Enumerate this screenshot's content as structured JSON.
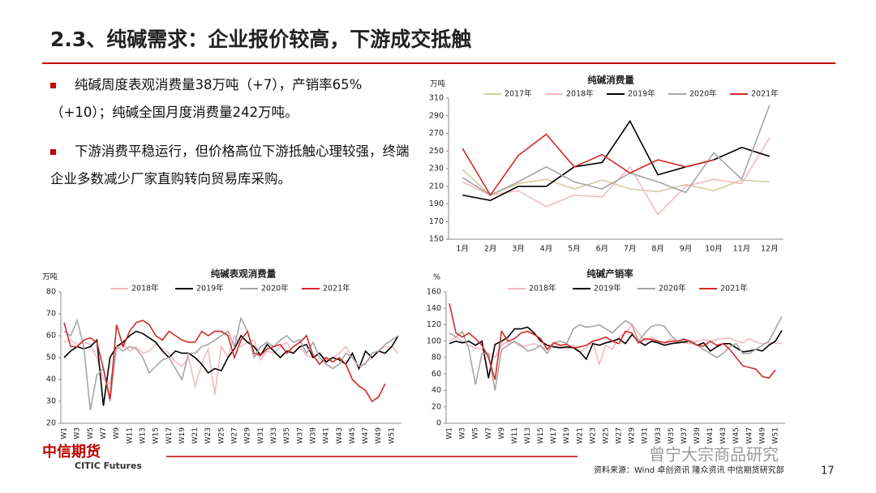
{
  "header": {
    "title": "2.3、纯碱需求：企业报价较高，下游成交抵触"
  },
  "bullets": [
    "纯碱周度表观消费量38万吨（+7），产销率65%（+10）；纯碱全国月度消费量242万吨。",
    "下游消费平稳运行，但价格高位下游抵触心理较强，终端企业多数减少厂家直购转向贸易库采购。"
  ],
  "footer": {
    "logo": "中信期货",
    "logo_en": "CITIC Futures",
    "source": "资料来源：Wind 卓创资讯 隆众资讯 中信期货研究部",
    "page": "17",
    "watermark": "曾宁大宗商品研究"
  },
  "chart_data": [
    {
      "type": "line",
      "title": "纯碱消费量",
      "y_unit": "万吨",
      "categories": [
        "1月",
        "2月",
        "3月",
        "4月",
        "5月",
        "6月",
        "7月",
        "8月",
        "9月",
        "10月",
        "11月",
        "12月"
      ],
      "ylim": [
        150,
        310
      ],
      "yticks": [
        150,
        170,
        190,
        210,
        230,
        250,
        270,
        290,
        310
      ],
      "series": [
        {
          "name": "2017年",
          "color": "#d8cba2",
          "values": [
            229,
            200,
            213,
            218,
            207,
            217,
            207,
            204,
            212,
            205,
            217,
            215
          ]
        },
        {
          "name": "2018年",
          "color": "#f4b9c1",
          "values": [
            215,
            200,
            205,
            187,
            200,
            198,
            232,
            178,
            210,
            218,
            213,
            265
          ]
        },
        {
          "name": "2019年",
          "color": "#000000",
          "values": [
            200,
            194,
            210,
            210,
            232,
            237,
            284,
            223,
            232,
            240,
            254,
            244
          ]
        },
        {
          "name": "2020年",
          "color": "#a6a6a6",
          "values": [
            220,
            200,
            215,
            232,
            215,
            207,
            225,
            215,
            203,
            248,
            218,
            302
          ]
        },
        {
          "name": "2021年",
          "color": "#d42a2a",
          "values": [
            253,
            200,
            245,
            269,
            232,
            246,
            225,
            240,
            232,
            240,
            null,
            null
          ]
        }
      ]
    },
    {
      "type": "line",
      "title": "纯碱表观消费量",
      "y_unit": "万吨",
      "categories": [
        "W1",
        null,
        "W3",
        null,
        "W5",
        null,
        "W7",
        null,
        "W9",
        null,
        "W11",
        null,
        "W13",
        null,
        "W15",
        null,
        "W17",
        null,
        "W19",
        null,
        "W21",
        null,
        "W23",
        null,
        "W25",
        null,
        "W27",
        null,
        "W29",
        null,
        "W31",
        null,
        "W33",
        null,
        "W35",
        null,
        "W37",
        null,
        "W39",
        null,
        "W41",
        null,
        "W43",
        null,
        "W45",
        null,
        "W47",
        null,
        "W49",
        null,
        "W51",
        null
      ],
      "ylim": [
        20,
        80
      ],
      "yticks": [
        20,
        30,
        40,
        50,
        60,
        70,
        80
      ],
      "series": [
        {
          "name": "2018年",
          "color": "#f4b9c1",
          "values": [
            57,
            58,
            56,
            57,
            56,
            50,
            40,
            38,
            54,
            56,
            53,
            55,
            52,
            53,
            56,
            54,
            52,
            48,
            46,
            50,
            37,
            47,
            54,
            33,
            55,
            50,
            60,
            55,
            57,
            58,
            49,
            53,
            52,
            55,
            57,
            52,
            55,
            51,
            50,
            52,
            49,
            50,
            52,
            55,
            50,
            45,
            48,
            50,
            53,
            55,
            55,
            52
          ]
        },
        {
          "name": "2019年",
          "color": "#000000",
          "values": [
            50,
            53,
            55,
            54,
            55,
            58,
            28,
            50,
            55,
            57,
            60,
            62,
            61,
            59,
            57,
            53,
            50,
            53,
            52,
            52,
            50,
            47,
            43,
            45,
            44,
            50,
            54,
            60,
            57,
            55,
            51,
            56,
            53,
            50,
            53,
            52,
            55,
            56,
            50,
            52,
            48,
            50,
            49,
            47,
            52,
            45,
            53,
            50,
            53,
            52,
            55,
            60
          ]
        },
        {
          "name": "2020年",
          "color": "#a6a6a6",
          "values": [
            62,
            60,
            67,
            55,
            26,
            42,
            45,
            30,
            55,
            53,
            55,
            54,
            50,
            43,
            46,
            49,
            50,
            45,
            40,
            52,
            52,
            55,
            56,
            58,
            60,
            62,
            55,
            68,
            62,
            50,
            55,
            57,
            55,
            58,
            60,
            57,
            58,
            52,
            57,
            50,
            47,
            45,
            47,
            52,
            50,
            46,
            47,
            52,
            53,
            56,
            58,
            60
          ]
        },
        {
          "name": "2021年",
          "color": "#d42a2a",
          "values": [
            66,
            55,
            55,
            58,
            59,
            57,
            45,
            31,
            65,
            55,
            62,
            66,
            67,
            65,
            60,
            58,
            62,
            60,
            58,
            57,
            57,
            62,
            60,
            62,
            62,
            60,
            50,
            58,
            62,
            52,
            51,
            54,
            55,
            56,
            52,
            55,
            57,
            60,
            51,
            47,
            50,
            48,
            50,
            47,
            40,
            37,
            35,
            30,
            32,
            38,
            null,
            null
          ]
        }
      ]
    },
    {
      "type": "line",
      "title": "纯碱产销率",
      "y_unit": "%",
      "categories": [
        "W1",
        null,
        "W3",
        null,
        "W5",
        null,
        "W7",
        null,
        "W9",
        null,
        "W11",
        null,
        "W13",
        null,
        "W15",
        null,
        "W17",
        null,
        "W19",
        null,
        "W21",
        null,
        "W23",
        null,
        "W25",
        null,
        "W27",
        null,
        "W29",
        null,
        "W31",
        null,
        "W33",
        null,
        "W35",
        null,
        "W37",
        null,
        "W39",
        null,
        "W41",
        null,
        "W43",
        null,
        "W45",
        null,
        "W47",
        null,
        "W49",
        null,
        "W51",
        null
      ],
      "ylim": [
        0,
        160
      ],
      "yticks": [
        0,
        20,
        40,
        60,
        80,
        100,
        120,
        140,
        160
      ],
      "series": [
        {
          "name": "2018年",
          "color": "#f4b9c1",
          "values": [
            100,
            105,
            100,
            95,
            92,
            90,
            85,
            80,
            95,
            100,
            98,
            93,
            95,
            97,
            93,
            90,
            95,
            93,
            90,
            95,
            87,
            92,
            100,
            72,
            95,
            90,
            105,
            110,
            120,
            110,
            100,
            105,
            100,
            98,
            103,
            100,
            98,
            97,
            100,
            102,
            100,
            102,
            103,
            104,
            100,
            98,
            103,
            99,
            97,
            98,
            98,
            97
          ]
        },
        {
          "name": "2019年",
          "color": "#000000",
          "values": [
            97,
            100,
            98,
            100,
            95,
            100,
            55,
            96,
            100,
            105,
            115,
            115,
            117,
            110,
            100,
            95,
            93,
            92,
            93,
            92,
            87,
            78,
            97,
            95,
            98,
            100,
            103,
            97,
            108,
            100,
            95,
            100,
            98,
            95,
            97,
            98,
            99,
            100,
            95,
            98,
            88,
            93,
            97,
            97,
            92,
            87,
            88,
            90,
            88,
            95,
            100,
            113
          ]
        },
        {
          "name": "2020年",
          "color": "#a6a6a6",
          "values": [
            110,
            105,
            112,
            90,
            47,
            85,
            85,
            40,
            90,
            95,
            100,
            95,
            88,
            90,
            95,
            85,
            98,
            100,
            97,
            115,
            120,
            117,
            118,
            120,
            115,
            110,
            118,
            125,
            120,
            100,
            110,
            118,
            120,
            118,
            107,
            100,
            103,
            98,
            95,
            90,
            85,
            80,
            85,
            93,
            97,
            85,
            85,
            90,
            95,
            100,
            115,
            130
          ]
        },
        {
          "name": "2021年",
          "color": "#d42a2a",
          "values": [
            146,
            110,
            105,
            110,
            103,
            95,
            80,
            53,
            112,
            100,
            103,
            110,
            112,
            108,
            103,
            90,
            98,
            95,
            96,
            92,
            93,
            95,
            100,
            102,
            105,
            100,
            97,
            112,
            110,
            98,
            103,
            102,
            100,
            98,
            100,
            100,
            102,
            100,
            95,
            94,
            100,
            95,
            97,
            90,
            80,
            70,
            68,
            66,
            57,
            55,
            65,
            null
          ]
        }
      ]
    }
  ]
}
